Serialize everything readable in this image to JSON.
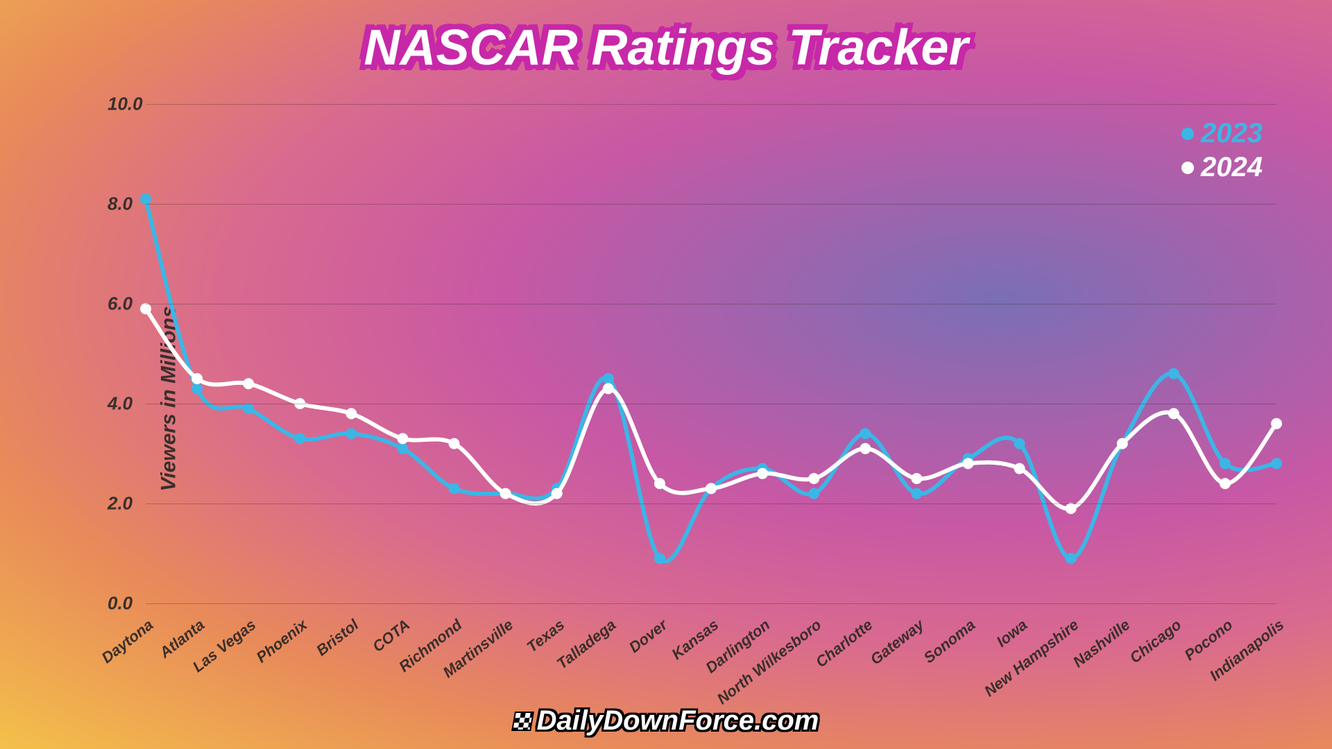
{
  "title": "NASCAR Ratings Tracker",
  "footer_text": "DailyDownForce.com",
  "chart": {
    "type": "line",
    "y_axis_label": "Viewers in Millions",
    "ylim": [
      0,
      10
    ],
    "ytick_step": 2.0,
    "y_ticks": [
      "0.0",
      "2.0",
      "4.0",
      "6.0",
      "8.0",
      "10.0"
    ],
    "categories": [
      "Daytona",
      "Atlanta",
      "Las Vegas",
      "Phoenix",
      "Bristol",
      "COTA",
      "Richmond",
      "Martinsville",
      "Texas",
      "Talladega",
      "Dover",
      "Kansas",
      "Darlington",
      "North Wilkesboro",
      "Charlotte",
      "Gateway",
      "Sonoma",
      "Iowa",
      "New Hampshire",
      "Nashville",
      "Chicago",
      "Pocono",
      "Indianapolis"
    ],
    "series": [
      {
        "name": "2023",
        "color": "#3bb6e6",
        "marker_color": "#3bb6e6",
        "line_width": 6,
        "marker_radius": 8,
        "values": [
          8.1,
          4.3,
          3.9,
          3.3,
          3.4,
          3.1,
          2.3,
          2.2,
          2.3,
          4.5,
          0.9,
          2.3,
          2.7,
          2.2,
          3.4,
          2.2,
          2.9,
          3.2,
          0.9,
          3.2,
          4.6,
          2.8,
          2.8
        ]
      },
      {
        "name": "2024",
        "color": "#ffffff",
        "marker_color": "#ffffff",
        "line_width": 6,
        "marker_radius": 8,
        "values": [
          5.9,
          4.5,
          4.4,
          4.0,
          3.8,
          3.3,
          3.2,
          2.2,
          2.2,
          4.3,
          2.4,
          2.3,
          2.6,
          2.5,
          3.1,
          2.5,
          2.8,
          2.7,
          1.9,
          3.2,
          3.8,
          2.4,
          3.6
        ]
      }
    ],
    "legend": {
      "position": "top-right",
      "items": [
        {
          "label": "2023",
          "color": "#3bb6e6"
        },
        {
          "label": "2024",
          "color": "#ffffff"
        }
      ]
    },
    "title_fontsize": 72,
    "label_fontsize": 30,
    "tick_fontsize": 26,
    "x_label_fontsize": 22,
    "legend_fontsize": 40,
    "grid_color": "rgba(60,50,50,0.35)",
    "text_color": "#3a2e2a",
    "title_outline_color": "#c728a8"
  }
}
